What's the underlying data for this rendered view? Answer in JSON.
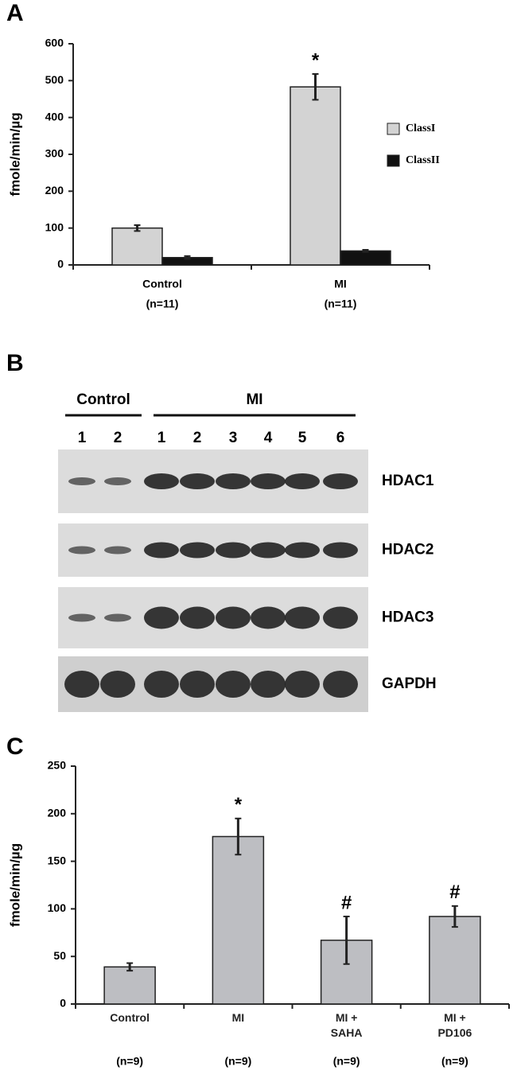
{
  "chart_data": [
    {
      "type": "bar",
      "panel_label": "A",
      "ylabel": "fmole/min/µg",
      "categories": [
        "Control",
        "MI"
      ],
      "category_counts": [
        "(n=11)",
        "(n=11)"
      ],
      "series": [
        {
          "name": "ClassI",
          "color": "#d3d3d3",
          "values": [
            100,
            483
          ],
          "errors": [
            8,
            35
          ],
          "annotations": [
            null,
            "*"
          ]
        },
        {
          "name": "ClassII",
          "color": "#111111",
          "values": [
            20,
            38
          ],
          "errors": [
            4,
            3
          ]
        }
      ],
      "ylim": [
        0,
        600
      ],
      "yticks": [
        0,
        100,
        200,
        300,
        400,
        500,
        600
      ],
      "legend": "right"
    },
    {
      "type": "bar",
      "panel_label": "C",
      "ylabel": "fmole/min/µg",
      "categories": [
        "Control",
        "MI",
        "MI + SAHA",
        "MI + PD106"
      ],
      "category_counts": [
        "(n=9)",
        "(n=9)",
        "(n=9)",
        "(n=9)"
      ],
      "values": [
        39,
        176,
        67,
        92
      ],
      "errors": [
        4,
        19,
        25,
        11
      ],
      "annotations": [
        null,
        "*",
        "#",
        "#"
      ],
      "color": "#bdbec2",
      "ylim": [
        0,
        250
      ],
      "yticks": [
        0,
        50,
        100,
        150,
        200,
        250
      ]
    }
  ],
  "blot": {
    "panel_label": "B",
    "groups": [
      {
        "name": "Control",
        "lanes": [
          "1",
          "2"
        ]
      },
      {
        "name": "MI",
        "lanes": [
          "1",
          "2",
          "3",
          "4",
          "5",
          "6"
        ]
      }
    ],
    "rows": [
      "HDAC1",
      "HDAC2",
      "HDAC3",
      "GAPDH"
    ]
  }
}
